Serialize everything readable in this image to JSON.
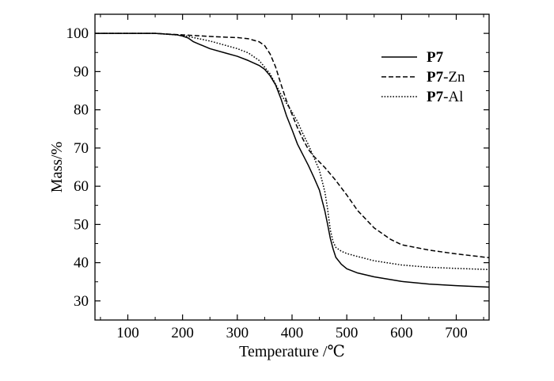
{
  "chart_data": {
    "type": "line",
    "title": "",
    "xlabel": "Temperature /℃",
    "ylabel": "Mass/%",
    "xlim": [
      40,
      760
    ],
    "ylim": [
      25,
      105
    ],
    "xticks": [
      100,
      200,
      300,
      400,
      500,
      600,
      700
    ],
    "yticks": [
      30,
      40,
      50,
      60,
      70,
      80,
      90,
      100
    ],
    "grid": false,
    "legend_position": "top-right",
    "series": [
      {
        "name_bold": "P7",
        "name_rest": "",
        "line_style": "solid",
        "x": [
          40,
          100,
          150,
          190,
          200,
          210,
          220,
          230,
          250,
          280,
          300,
          320,
          340,
          350,
          360,
          370,
          380,
          390,
          400,
          410,
          420,
          430,
          440,
          450,
          460,
          465,
          470,
          475,
          480,
          490,
          500,
          520,
          550,
          600,
          650,
          700,
          760
        ],
        "y": [
          100,
          100,
          100,
          99.6,
          99.3,
          98.8,
          97.8,
          97.2,
          96.0,
          94.8,
          94.0,
          92.9,
          91.6,
          90.6,
          88.9,
          86.5,
          82.8,
          78.4,
          74.8,
          71.0,
          68.2,
          65.4,
          62.3,
          59.0,
          53.5,
          50.0,
          46.3,
          43.6,
          41.4,
          39.6,
          38.4,
          37.3,
          36.3,
          35.1,
          34.4,
          34.0,
          33.6
        ]
      },
      {
        "name_bold": "P7",
        "name_rest": "-Zn",
        "line_style": "dashed",
        "x": [
          40,
          100,
          150,
          200,
          250,
          280,
          300,
          320,
          340,
          350,
          360,
          370,
          380,
          390,
          400,
          410,
          420,
          430,
          440,
          460,
          480,
          500,
          520,
          550,
          580,
          600,
          650,
          700,
          760
        ],
        "y": [
          100,
          100,
          100,
          99.6,
          99.2,
          99.0,
          98.9,
          98.6,
          97.8,
          96.8,
          94.6,
          91.2,
          86.6,
          82.3,
          78.8,
          75.3,
          72.3,
          69.6,
          67.8,
          64.9,
          61.5,
          57.7,
          53.6,
          49.1,
          46.1,
          44.7,
          43.3,
          42.3,
          41.3
        ]
      },
      {
        "name_bold": "P7",
        "name_rest": "-Al",
        "line_style": "dotted",
        "x": [
          40,
          100,
          150,
          200,
          220,
          250,
          280,
          300,
          320,
          340,
          360,
          380,
          390,
          400,
          410,
          420,
          430,
          440,
          450,
          460,
          465,
          470,
          475,
          480,
          490,
          500,
          520,
          550,
          600,
          650,
          700,
          760
        ],
        "y": [
          100,
          100,
          100,
          99.5,
          98.9,
          98.0,
          96.8,
          96.0,
          94.9,
          92.9,
          89.4,
          84.0,
          81.7,
          79.4,
          76.9,
          73.7,
          70.8,
          67.5,
          64.2,
          58.5,
          54.0,
          48.5,
          45.5,
          44.0,
          43.0,
          42.4,
          41.6,
          40.5,
          39.4,
          38.8,
          38.5,
          38.2
        ]
      }
    ]
  }
}
